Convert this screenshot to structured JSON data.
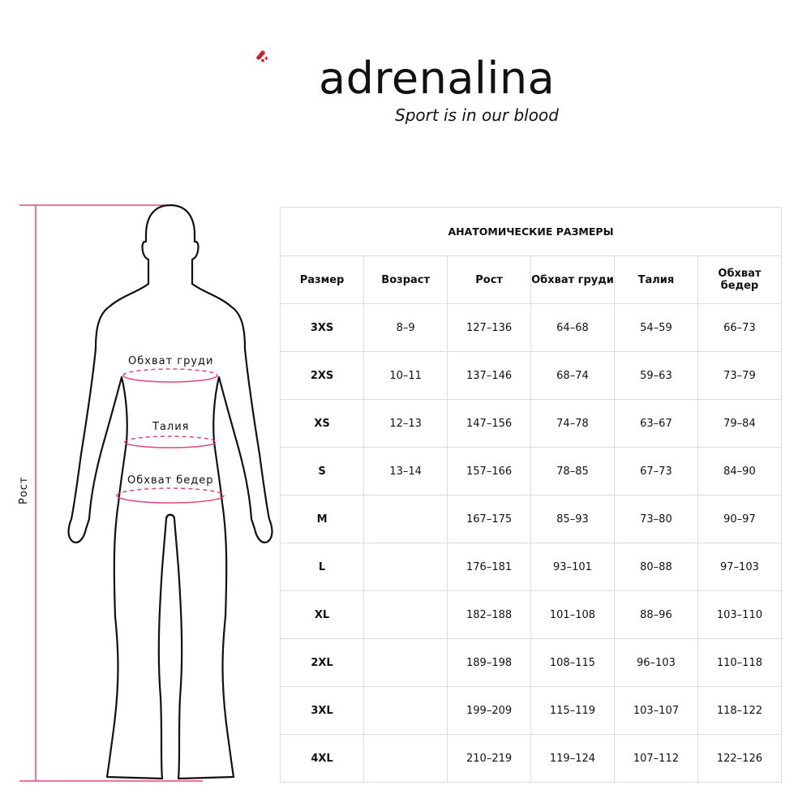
{
  "brand": {
    "name": "adrenalina",
    "tagline": "Sport is in our blood",
    "accent": "#d0202f"
  },
  "figure": {
    "height_label": "Рост",
    "chest_label": "Обхват груди",
    "waist_label": "Талия",
    "hips_label": "Обхват бедер",
    "measure_color": "#e8437a"
  },
  "table": {
    "title": "АНАТОМИЧЕСКИЕ РАЗМЕРЫ",
    "headers": [
      "Размер",
      "Возраст",
      "Рост",
      "Обхват груди",
      "Талия",
      "Обхват бедер"
    ],
    "rows": [
      [
        "3XS",
        "8–9",
        "127–136",
        "64–68",
        "54–59",
        "66–73"
      ],
      [
        "2XS",
        "10–11",
        "137–146",
        "68–74",
        "59–63",
        "73–79"
      ],
      [
        "XS",
        "12–13",
        "147–156",
        "74–78",
        "63–67",
        "79–84"
      ],
      [
        "S",
        "13–14",
        "157–166",
        "78–85",
        "67–73",
        "84–90"
      ],
      [
        "M",
        "",
        "167–175",
        "85–93",
        "73–80",
        "90–97"
      ],
      [
        "L",
        "",
        "176–181",
        "93–101",
        "80–88",
        "97–103"
      ],
      [
        "XL",
        "",
        "182–188",
        "101–108",
        "88–96",
        "103–110"
      ],
      [
        "2XL",
        "",
        "189–198",
        "108–115",
        "96–103",
        "110–118"
      ],
      [
        "3XL",
        "",
        "199–209",
        "115–119",
        "103–107",
        "118–122"
      ],
      [
        "4XL",
        "",
        "210–219",
        "119–124",
        "107–112",
        "122–126"
      ]
    ]
  }
}
